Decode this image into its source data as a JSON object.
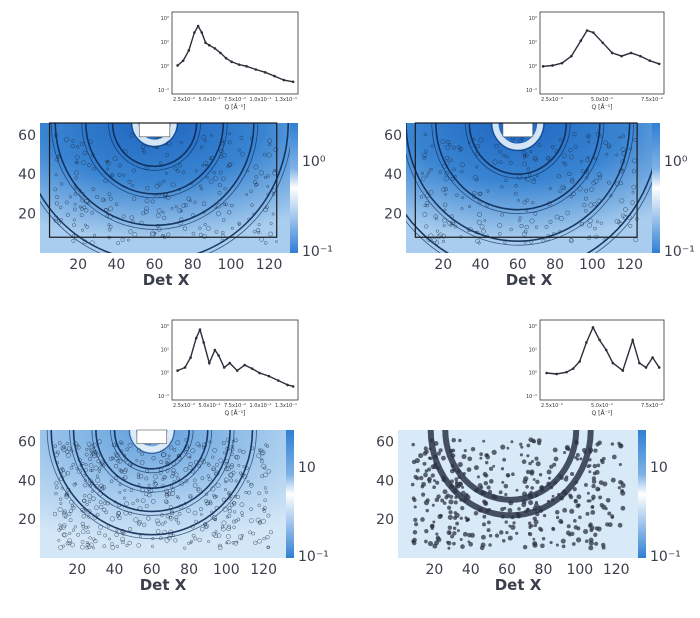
{
  "chart_data": [
    {
      "type": "heatmap",
      "panel": "top-left",
      "xlabel": "Det X",
      "x_ticks": [
        20,
        40,
        60,
        80,
        100,
        120
      ],
      "y_ticks": [
        20,
        40,
        60
      ],
      "xlim": [
        0,
        132
      ],
      "ylim": [
        0,
        66
      ],
      "colorbar": {
        "ticks": [
          "10^0",
          "10^-1"
        ],
        "scale": "log"
      },
      "rings": {
        "center": [
          60,
          66
        ],
        "radii": [
          10,
          22,
          36,
          52,
          70
        ]
      },
      "inset": {
        "type": "line",
        "xlabel": "Q [Å⁻¹]",
        "x_ticks": [
          "2.5x10⁻²",
          "5.0x10⁻²",
          "7.5x10⁻²",
          "1.0x10⁻¹",
          "1.3x10⁻¹"
        ],
        "y_ticks": [
          "10²",
          "10¹",
          "10⁰",
          "10⁻¹"
        ],
        "yscale": "log",
        "x": [
          0.006,
          0.012,
          0.018,
          0.024,
          0.028,
          0.032,
          0.036,
          0.04,
          0.046,
          0.052,
          0.058,
          0.064,
          0.072,
          0.08,
          0.09,
          0.1,
          0.11,
          0.12,
          0.13
        ],
        "y": [
          1.3,
          2.0,
          5.0,
          25,
          45,
          25,
          10,
          8,
          6,
          4,
          2.5,
          1.8,
          1.4,
          1.2,
          0.9,
          0.7,
          0.5,
          0.35,
          0.3
        ]
      }
    },
    {
      "type": "heatmap",
      "panel": "top-right",
      "xlabel": "Det X",
      "x_ticks": [
        20,
        40,
        60,
        80,
        100,
        120
      ],
      "y_ticks": [
        20,
        40,
        60
      ],
      "xlim": [
        0,
        132
      ],
      "ylim": [
        0,
        66
      ],
      "colorbar": {
        "ticks": [
          "10^0",
          "10^-1"
        ],
        "scale": "log"
      },
      "rings": {
        "center": [
          60,
          66
        ],
        "radii": [
          12,
          26,
          44,
          60,
          76
        ]
      },
      "inset": {
        "type": "line",
        "xlabel": "Q [Å⁻¹]",
        "x_ticks": [
          "2.5x10⁻²",
          "5.0x10⁻²",
          "7.5x10⁻²"
        ],
        "y_ticks": [
          "10²",
          "10¹",
          "10⁰",
          "10⁻¹"
        ],
        "yscale": "log",
        "x": [
          0.002,
          0.008,
          0.014,
          0.02,
          0.026,
          0.03,
          0.034,
          0.04,
          0.046,
          0.052,
          0.058,
          0.064,
          0.07,
          0.076
        ],
        "y": [
          1.2,
          1.3,
          1.6,
          3.0,
          12,
          30,
          25,
          10,
          4,
          3,
          4,
          3,
          2,
          1.5
        ]
      }
    },
    {
      "type": "heatmap",
      "panel": "bottom-left",
      "xlabel": "Det X",
      "x_ticks": [
        20,
        40,
        60,
        80,
        100,
        120
      ],
      "y_ticks": [
        20,
        40,
        60
      ],
      "xlim": [
        0,
        132
      ],
      "ylim": [
        0,
        66
      ],
      "colorbar": {
        "ticks": [
          "10",
          "10^-1"
        ],
        "scale": "log"
      },
      "rings": {
        "center": [
          60,
          66
        ],
        "radii": [
          10,
          20,
          30,
          42,
          54
        ]
      },
      "inset": {
        "type": "line",
        "xlabel": "Q [Å⁻¹]",
        "x_ticks": [
          "2.5x10⁻²",
          "5.0x10⁻²",
          "7.5x10⁻²",
          "1.0x10⁻¹",
          "1.3x10⁻¹"
        ],
        "y_ticks": [
          "10²",
          "10¹",
          "10⁰",
          "10⁻¹"
        ],
        "yscale": "log",
        "x": [
          0.006,
          0.014,
          0.02,
          0.026,
          0.03,
          0.034,
          0.04,
          0.046,
          0.05,
          0.056,
          0.062,
          0.07,
          0.078,
          0.086,
          0.094,
          0.104,
          0.114,
          0.124,
          0.13
        ],
        "y": [
          1.5,
          2.0,
          5,
          30,
          65,
          20,
          3,
          10,
          6,
          2,
          3,
          1.5,
          2.5,
          1.8,
          1.2,
          0.9,
          0.6,
          0.4,
          0.35
        ]
      }
    },
    {
      "type": "heatmap",
      "panel": "bottom-right",
      "xlabel": "Det X",
      "x_ticks": [
        20,
        40,
        60,
        80,
        100,
        120
      ],
      "y_ticks": [
        20,
        40,
        60
      ],
      "xlim": [
        0,
        132
      ],
      "ylim": [
        0,
        66
      ],
      "colorbar": {
        "ticks": [
          "10",
          "10^-1"
        ],
        "scale": "log"
      },
      "rings": {
        "center": [
          62,
          66
        ],
        "radii": [
          36,
          44
        ]
      },
      "inset": {
        "type": "line",
        "xlabel": "Q [Å⁻¹]",
        "x_ticks": [
          "2.5x10⁻²",
          "5.0x10⁻²",
          "7.5x10⁻²"
        ],
        "y_ticks": [
          "10²",
          "10¹",
          "10⁰",
          "10⁻¹"
        ],
        "yscale": "log",
        "x": [
          0.004,
          0.01,
          0.016,
          0.02,
          0.024,
          0.028,
          0.032,
          0.036,
          0.04,
          0.044,
          0.05,
          0.056,
          0.06,
          0.064,
          0.068,
          0.072
        ],
        "y": [
          1.2,
          1.1,
          1.3,
          1.8,
          3.5,
          20,
          80,
          25,
          10,
          3,
          1.5,
          25,
          3,
          2,
          5,
          2
        ]
      }
    }
  ]
}
